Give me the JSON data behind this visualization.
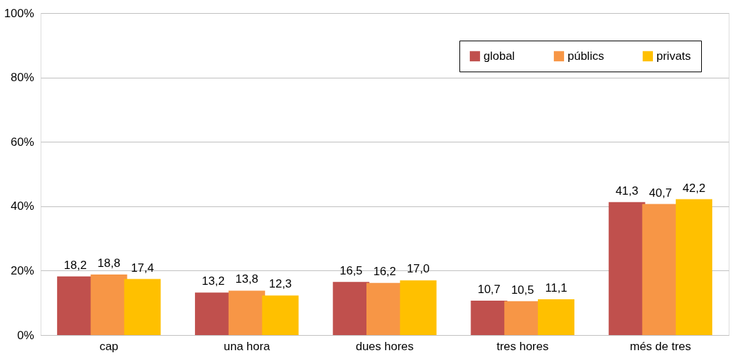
{
  "chart_data": {
    "type": "bar",
    "categories": [
      "cap",
      "una hora",
      "dues hores",
      "tres hores",
      "més de tres"
    ],
    "series": [
      {
        "name": "global",
        "color": "#c0504d",
        "values": [
          18.2,
          13.2,
          16.5,
          10.7,
          41.3
        ],
        "value_labels": [
          "18,2",
          "13,2",
          "16,5",
          "10,7",
          "41,3"
        ]
      },
      {
        "name": "públics",
        "color": "#f79646",
        "values": [
          18.8,
          13.8,
          16.2,
          10.5,
          40.7
        ],
        "value_labels": [
          "18,8",
          "13,8",
          "16,2",
          "10,5",
          "40,7"
        ]
      },
      {
        "name": "privats",
        "color": "#ffc000",
        "values": [
          17.4,
          12.3,
          17.0,
          11.1,
          42.2
        ],
        "value_labels": [
          "17,4",
          "12,3",
          "17,0",
          "11,1",
          "42,2"
        ]
      }
    ],
    "ylim": [
      0,
      100
    ],
    "yticks": [
      {
        "value": 0,
        "label": "0%"
      },
      {
        "value": 20,
        "label": "20%"
      },
      {
        "value": 40,
        "label": "40%"
      },
      {
        "value": 60,
        "label": "60%"
      },
      {
        "value": 80,
        "label": "80%"
      },
      {
        "value": 100,
        "label": "100%"
      }
    ],
    "grid": "y",
    "legend": "top right"
  }
}
